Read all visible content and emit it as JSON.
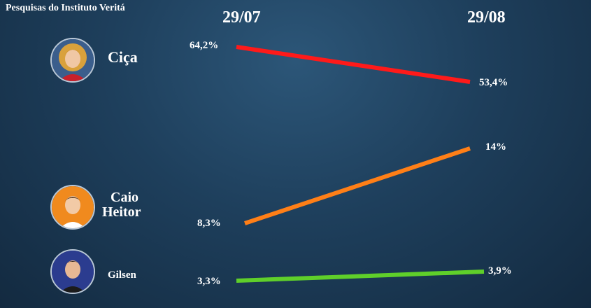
{
  "title": "Pesquisas do Instituto Veritá",
  "dates": [
    "29/07",
    "29/08"
  ],
  "candidates": [
    {
      "name": "Ciça",
      "name_lines": [
        "Ciça"
      ],
      "avatar_icon": "woman-portrait-icon",
      "color": "#ff1a1a",
      "labels": [
        "64,2%",
        "53,4%"
      ]
    },
    {
      "name": "Caio Heitor",
      "name_lines": [
        "Caio",
        "Heitor"
      ],
      "avatar_icon": "man-portrait-icon",
      "color": "#ff7f17",
      "labels": [
        "8,3%",
        "14%"
      ]
    },
    {
      "name": "Gilsen",
      "name_lines": [
        "Gilsen"
      ],
      "avatar_icon": "man-portrait-icon",
      "color": "#5fcf2a",
      "labels": [
        "3,3%",
        "3,9%"
      ]
    }
  ],
  "chart_data": {
    "type": "line",
    "title": "Pesquisas do Instituto Veritá",
    "x": [
      "29/07",
      "29/08"
    ],
    "series": [
      {
        "name": "Ciça",
        "values": [
          64.2,
          53.4
        ],
        "color": "#ff1a1a"
      },
      {
        "name": "Caio Heitor",
        "values": [
          8.3,
          14
        ],
        "color": "#ff7f17"
      },
      {
        "name": "Gilsen",
        "values": [
          3.3,
          3.9
        ],
        "color": "#5fcf2a"
      }
    ],
    "grid": false,
    "legend": "left"
  }
}
